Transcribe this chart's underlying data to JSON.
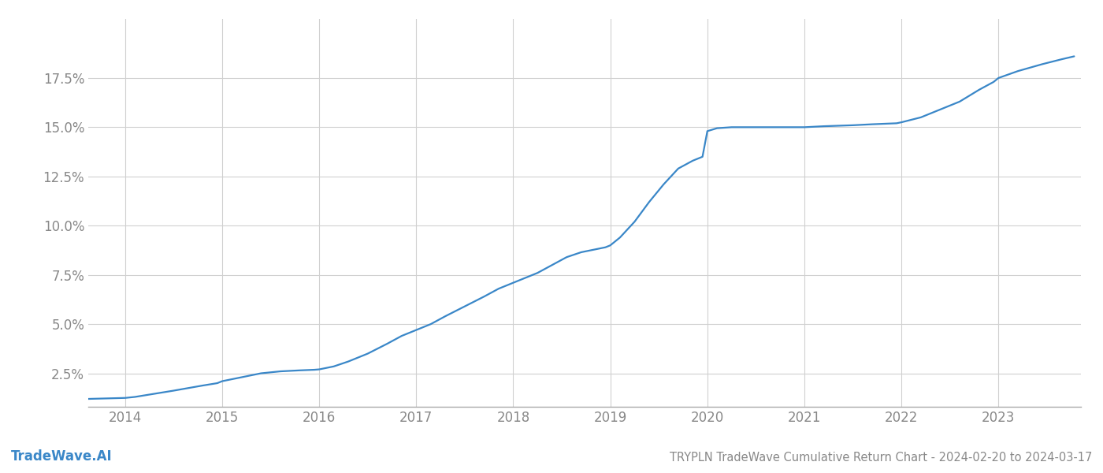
{
  "title": "TRYPLN TradeWave Cumulative Return Chart - 2024-02-20 to 2024-03-17",
  "watermark": "TradeWave.AI",
  "line_color": "#3a87c8",
  "background_color": "#ffffff",
  "grid_color": "#d0d0d0",
  "x_years": [
    2014,
    2015,
    2016,
    2017,
    2018,
    2019,
    2020,
    2021,
    2022,
    2023
  ],
  "x_data": [
    2013.62,
    2014.0,
    2014.1,
    2014.2,
    2014.35,
    2014.5,
    2014.65,
    2014.8,
    2014.95,
    2015.0,
    2015.1,
    2015.25,
    2015.4,
    2015.6,
    2015.8,
    2015.95,
    2016.0,
    2016.15,
    2016.3,
    2016.5,
    2016.7,
    2016.85,
    2016.95,
    2017.0,
    2017.15,
    2017.3,
    2017.5,
    2017.7,
    2017.85,
    2017.95,
    2018.0,
    2018.1,
    2018.25,
    2018.4,
    2018.55,
    2018.7,
    2018.85,
    2018.95,
    2019.0,
    2019.1,
    2019.25,
    2019.4,
    2019.55,
    2019.7,
    2019.85,
    2019.95,
    2020.0,
    2020.1,
    2020.25,
    2020.5,
    2020.7,
    2020.95,
    2021.0,
    2021.2,
    2021.5,
    2021.7,
    2021.95,
    2022.0,
    2022.2,
    2022.4,
    2022.6,
    2022.8,
    2022.95,
    2023.0,
    2023.2,
    2023.45,
    2023.65,
    2023.78
  ],
  "y_data": [
    1.2,
    1.25,
    1.3,
    1.38,
    1.5,
    1.62,
    1.75,
    1.88,
    2.0,
    2.1,
    2.2,
    2.35,
    2.5,
    2.6,
    2.65,
    2.68,
    2.7,
    2.85,
    3.1,
    3.5,
    4.0,
    4.4,
    4.6,
    4.7,
    5.0,
    5.4,
    5.9,
    6.4,
    6.8,
    7.0,
    7.1,
    7.3,
    7.6,
    8.0,
    8.4,
    8.65,
    8.8,
    8.9,
    9.0,
    9.4,
    10.2,
    11.2,
    12.1,
    12.9,
    13.3,
    13.5,
    14.8,
    14.95,
    15.0,
    15.0,
    15.0,
    15.0,
    15.0,
    15.05,
    15.1,
    15.15,
    15.2,
    15.25,
    15.5,
    15.9,
    16.3,
    16.9,
    17.3,
    17.5,
    17.85,
    18.2,
    18.45,
    18.6
  ],
  "yticks": [
    2.5,
    5.0,
    7.5,
    10.0,
    12.5,
    15.0,
    17.5
  ],
  "ylim": [
    0.8,
    20.5
  ],
  "xlim": [
    2013.62,
    2023.85
  ],
  "title_fontsize": 10.5,
  "tick_fontsize": 12,
  "watermark_fontsize": 12,
  "line_width": 1.6
}
